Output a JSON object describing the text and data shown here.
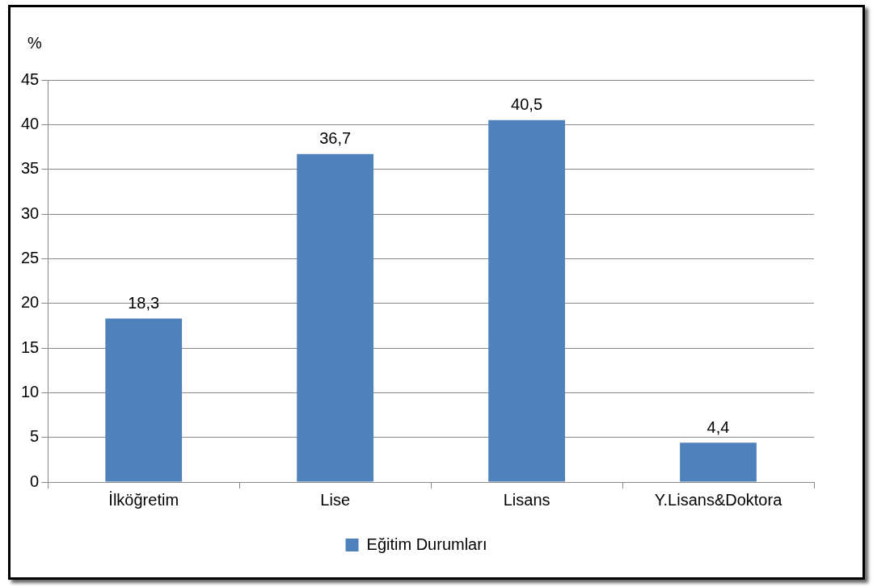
{
  "chart_data": {
    "type": "bar",
    "ylabel": "%",
    "categories": [
      "İlköğretim",
      "Lise",
      "Lisans",
      "Y.Lisans&Doktora"
    ],
    "series": [
      {
        "name": "Eğitim Durumları",
        "color": "#4f81bd",
        "values": [
          18.3,
          36.7,
          40.5,
          4.4
        ]
      }
    ],
    "value_labels": [
      "18,3",
      "36,7",
      "40,5",
      "4,4"
    ],
    "ylim": [
      0,
      45
    ],
    "yticks": [
      0,
      5,
      10,
      15,
      20,
      25,
      30,
      35,
      40,
      45
    ],
    "grid": "y",
    "legend": "bottom"
  }
}
